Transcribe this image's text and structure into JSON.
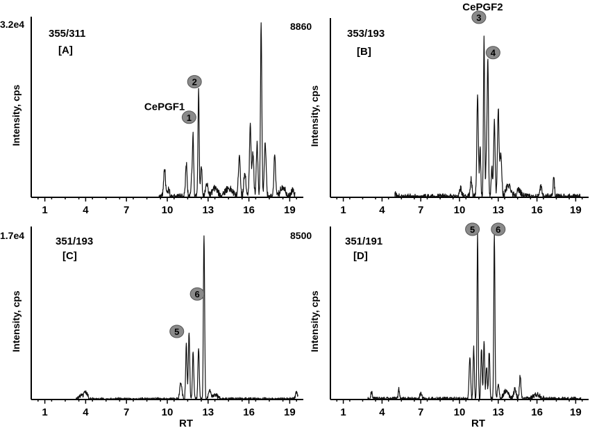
{
  "chart_data": [
    {
      "type": "line",
      "id": "A",
      "ion": "355/311",
      "label": "[A]",
      "ymax_label": "3.2e4",
      "ylabel": "Intensity, cps",
      "xlabel": "",
      "xlim": [
        0,
        20
      ],
      "ylim": [
        0,
        1
      ],
      "xticks": [
        1,
        4,
        7,
        10,
        13,
        16,
        19
      ],
      "compound_labels": [
        {
          "text": "CePGF1",
          "x": 9.8,
          "y": 0.49
        }
      ],
      "markers": [
        {
          "text": "1",
          "x": 11.6,
          "y": 0.45
        },
        {
          "text": "2",
          "x": 12.0,
          "y": 0.65
        }
      ],
      "peaks": [
        [
          9.8,
          0.16,
          0.07
        ],
        [
          10.1,
          0.04,
          0.08
        ],
        [
          11.4,
          0.19,
          0.06
        ],
        [
          11.8,
          0.13,
          0.05
        ],
        [
          11.9,
          0.33,
          0.045
        ],
        [
          12.3,
          0.6,
          0.045
        ],
        [
          12.5,
          0.19,
          0.05
        ],
        [
          12.9,
          0.07,
          0.1
        ],
        [
          13.5,
          0.05,
          0.2
        ],
        [
          14.5,
          0.05,
          0.3
        ],
        [
          15.3,
          0.24,
          0.07
        ],
        [
          15.7,
          0.14,
          0.08
        ],
        [
          16.1,
          0.42,
          0.06
        ],
        [
          16.3,
          0.25,
          0.06
        ],
        [
          16.6,
          0.3,
          0.06
        ],
        [
          16.9,
          0.97,
          0.05
        ],
        [
          17.2,
          0.3,
          0.07
        ],
        [
          17.9,
          0.25,
          0.06
        ],
        [
          18.5,
          0.06,
          0.2
        ],
        [
          19.2,
          0.04,
          0.1
        ]
      ],
      "noise": 0.02,
      "trace_range": [
        9.4,
        19.4
      ]
    },
    {
      "type": "line",
      "id": "B",
      "ion": "353/193",
      "label": "[B]",
      "ymax_label": "8860",
      "ylabel": "Intensity, cps",
      "xlabel": "",
      "xlim": [
        0,
        20
      ],
      "ylim": [
        0,
        1
      ],
      "xticks": [
        1,
        4,
        7,
        10,
        13,
        16,
        19
      ],
      "compound_labels": [
        {
          "text": "CePGF2",
          "x": 11.8,
          "y": 1.06
        }
      ],
      "markers": [
        {
          "text": "3",
          "x": 11.5,
          "y": 1.02
        },
        {
          "text": "4",
          "x": 12.6,
          "y": 0.82
        }
      ],
      "peaks": [
        [
          5.0,
          0.02,
          0.1
        ],
        [
          10.1,
          0.05,
          0.08
        ],
        [
          10.9,
          0.1,
          0.07
        ],
        [
          11.4,
          0.57,
          0.06
        ],
        [
          11.6,
          0.28,
          0.05
        ],
        [
          11.9,
          0.92,
          0.045
        ],
        [
          12.1,
          0.3,
          0.05
        ],
        [
          12.2,
          0.76,
          0.045
        ],
        [
          12.5,
          0.18,
          0.05
        ],
        [
          12.7,
          0.43,
          0.055
        ],
        [
          13.0,
          0.5,
          0.06
        ],
        [
          13.2,
          0.25,
          0.07
        ],
        [
          13.8,
          0.07,
          0.2
        ],
        [
          14.6,
          0.04,
          0.2
        ],
        [
          16.3,
          0.06,
          0.08
        ],
        [
          17.3,
          0.11,
          0.06
        ]
      ],
      "noise": 0.02,
      "trace_range": [
        5.0,
        19.4
      ]
    },
    {
      "type": "line",
      "id": "C",
      "ion": "351/193",
      "label": "[C]",
      "ymax_label": "1.7e4",
      "ylabel": "Intensity, cps",
      "xlabel": "RT",
      "xlim": [
        0,
        20
      ],
      "ylim": [
        0,
        1
      ],
      "xticks": [
        1,
        4,
        7,
        10,
        13,
        16,
        19
      ],
      "compound_labels": [],
      "markers": [
        {
          "text": "5",
          "x": 10.7,
          "y": 0.4
        },
        {
          "text": "6",
          "x": 12.2,
          "y": 0.62
        }
      ],
      "peaks": [
        [
          3.6,
          0.02,
          0.15
        ],
        [
          4.0,
          0.04,
          0.15
        ],
        [
          11.0,
          0.1,
          0.08
        ],
        [
          11.4,
          0.32,
          0.05
        ],
        [
          11.6,
          0.4,
          0.05
        ],
        [
          11.9,
          0.28,
          0.05
        ],
        [
          12.3,
          0.3,
          0.05
        ],
        [
          12.7,
          0.97,
          0.045
        ],
        [
          13.1,
          0.05,
          0.08
        ],
        [
          13.5,
          0.03,
          0.2
        ],
        [
          19.5,
          0.04,
          0.08
        ]
      ],
      "noise": 0.012,
      "trace_range": [
        3.3,
        19.6
      ]
    },
    {
      "type": "line",
      "id": "D",
      "ion": "351/191",
      "label": "[D]",
      "ymax_label": "8500",
      "ylabel": "Intensity, cps",
      "xlabel": "RT",
      "xlim": [
        0,
        20
      ],
      "ylim": [
        0,
        1
      ],
      "xticks": [
        1,
        4,
        7,
        10,
        13,
        16,
        19
      ],
      "compound_labels": [],
      "markers": [
        {
          "text": "5",
          "x": 11.0,
          "y": 1.0
        },
        {
          "text": "6",
          "x": 13.0,
          "y": 1.0
        }
      ],
      "peaks": [
        [
          3.2,
          0.05,
          0.06
        ],
        [
          5.3,
          0.06,
          0.06
        ],
        [
          7.0,
          0.04,
          0.08
        ],
        [
          10.8,
          0.25,
          0.06
        ],
        [
          11.1,
          0.3,
          0.05
        ],
        [
          11.4,
          0.97,
          0.045
        ],
        [
          11.7,
          0.3,
          0.05
        ],
        [
          11.9,
          0.34,
          0.05
        ],
        [
          12.1,
          0.2,
          0.05
        ],
        [
          12.3,
          0.28,
          0.05
        ],
        [
          12.7,
          0.97,
          0.045
        ],
        [
          13.0,
          0.08,
          0.07
        ],
        [
          13.6,
          0.05,
          0.2
        ],
        [
          14.3,
          0.06,
          0.1
        ],
        [
          14.7,
          0.14,
          0.06
        ],
        [
          16.0,
          0.03,
          0.3
        ]
      ],
      "noise": 0.015,
      "trace_range": [
        2.9,
        19.4
      ]
    }
  ]
}
